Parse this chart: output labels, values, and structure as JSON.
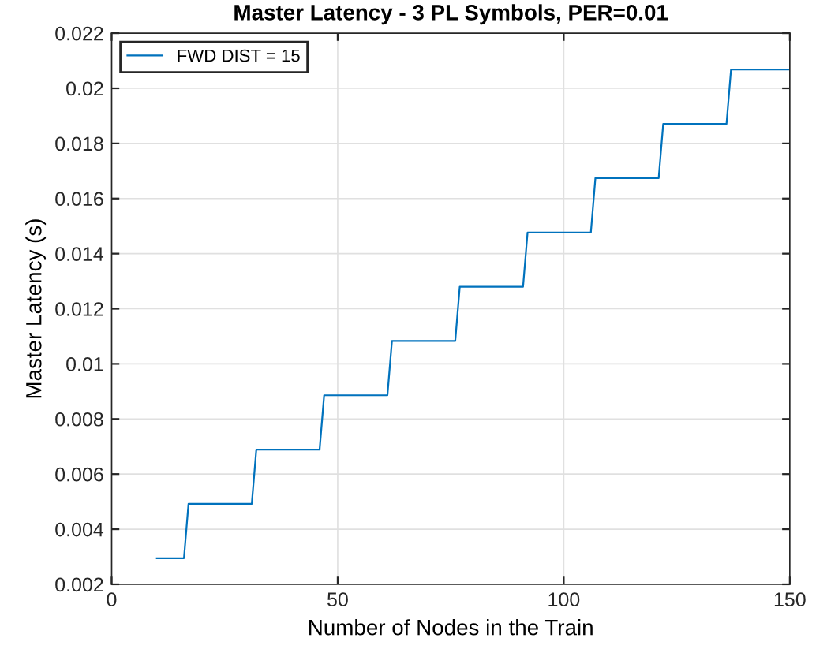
{
  "chart_data": {
    "type": "line",
    "title": "Master Latency - 3 PL Symbols, PER=0.01",
    "xlabel": "Number of Nodes in the Train",
    "ylabel": "Master Latency (s)",
    "x": [
      10,
      16,
      17,
      31,
      32,
      46,
      47,
      61,
      62,
      76,
      77,
      91,
      92,
      106,
      107,
      121,
      122,
      136,
      137,
      150
    ],
    "series": [
      {
        "name": "FWD DIST = 15",
        "color": "#0072bd",
        "values": [
          0.00295,
          0.00295,
          0.00492,
          0.00492,
          0.00689,
          0.00689,
          0.00886,
          0.00886,
          0.01083,
          0.01083,
          0.0128,
          0.0128,
          0.01477,
          0.01477,
          0.01674,
          0.01674,
          0.01871,
          0.01871,
          0.02068,
          0.02068
        ]
      }
    ],
    "xlim": [
      0,
      150
    ],
    "xticks": [
      0,
      50,
      100,
      150
    ],
    "ylim": [
      0.002,
      0.022
    ],
    "yticks": [
      0.002,
      0.004,
      0.006,
      0.008,
      0.01,
      0.012,
      0.014,
      0.016,
      0.018,
      0.02,
      0.022
    ],
    "grid": true,
    "legend": "top left",
    "marker": "none",
    "line_style": "solid"
  }
}
